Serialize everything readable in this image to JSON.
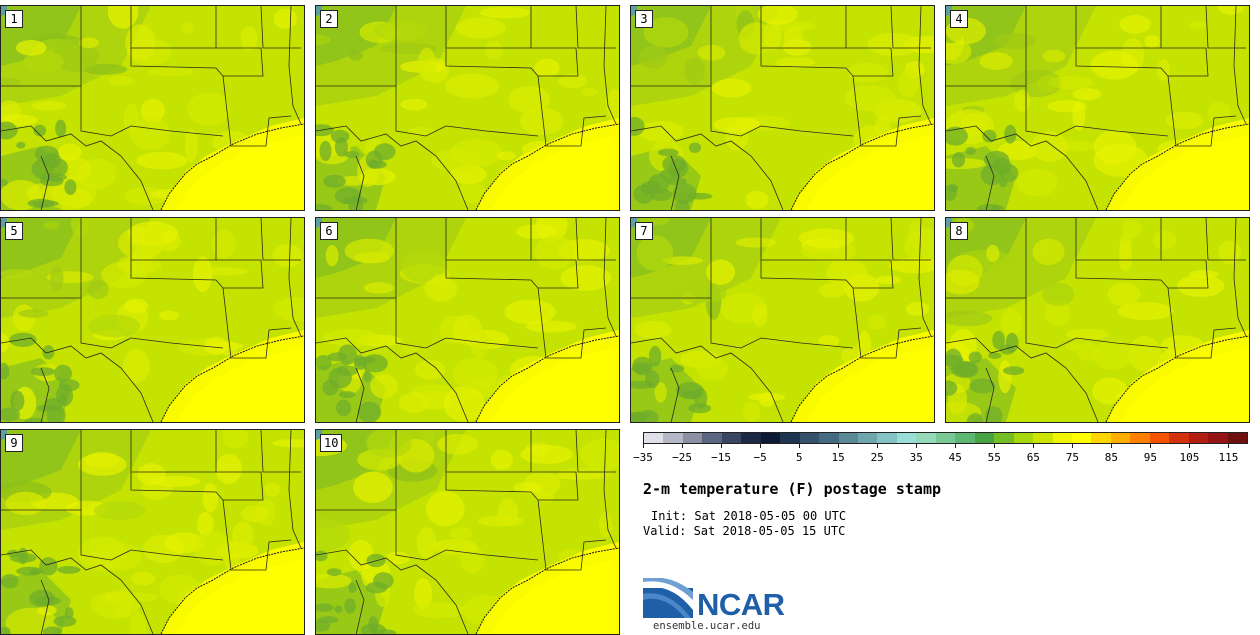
{
  "header": {
    "title": "2-m temperature (F) postage stamp",
    "init": "Init: Sat 2018-05-05 00 UTC",
    "valid": "Valid: Sat 2018-05-05 15 UTC"
  },
  "members": [
    {
      "label": "1"
    },
    {
      "label": "2"
    },
    {
      "label": "3"
    },
    {
      "label": "4"
    },
    {
      "label": "5"
    },
    {
      "label": "6"
    },
    {
      "label": "7"
    },
    {
      "label": "8"
    },
    {
      "label": "9"
    },
    {
      "label": "10"
    }
  ],
  "colorbar": {
    "ticks": [
      "−35",
      "−25",
      "−15",
      "−5",
      "5",
      "15",
      "25",
      "35",
      "45",
      "55",
      "65",
      "75",
      "85",
      "95",
      "105",
      "115"
    ],
    "colors": [
      "#e0e1e8",
      "#b6b9c5",
      "#8c90a3",
      "#5d6681",
      "#3a4562",
      "#1d2943",
      "#0d1a33",
      "#1f3450",
      "#34506b",
      "#466a80",
      "#5b8996",
      "#6fa6ad",
      "#84c2c3",
      "#98dfd5",
      "#95d8ba",
      "#79c896",
      "#5db672",
      "#47a244",
      "#74bd27",
      "#a6d60c",
      "#cde400",
      "#eff400",
      "#ffff00",
      "#ffd400",
      "#ffae00",
      "#ff7f00",
      "#f65204",
      "#d4320c",
      "#b41d12",
      "#951314",
      "#6e1010"
    ]
  },
  "branding": {
    "logo_text": "NCAR",
    "site": "ensemble.ucar.edu"
  }
}
